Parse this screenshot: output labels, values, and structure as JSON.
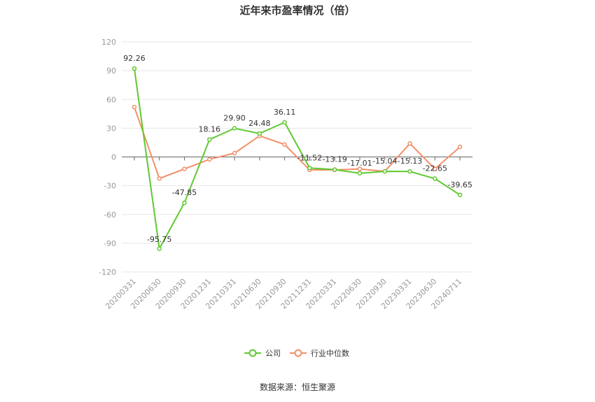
{
  "chart_data": {
    "type": "line",
    "title": "近年来市盈率情况（倍）",
    "categories": [
      "20200331",
      "20200630",
      "20200930",
      "20201231",
      "20210331",
      "20210630",
      "20210930",
      "20211231",
      "20220331",
      "20220630",
      "20220930",
      "20230331",
      "20230630",
      "20240711"
    ],
    "ylim": [
      -120,
      120
    ],
    "yticks": [
      120,
      90,
      60,
      30,
      0,
      -30,
      -60,
      -90,
      -120
    ],
    "grid": true,
    "legend_position": "bottom",
    "series": [
      {
        "name": "公司",
        "color": "#5fc931",
        "values": [
          92.26,
          -95.75,
          -47.85,
          18.16,
          29.9,
          24.48,
          36.11,
          -11.52,
          -13.19,
          -17.01,
          -15.04,
          -15.13,
          -22.65,
          -39.65
        ],
        "labels": [
          "92.26",
          "-95.75",
          "-47.85",
          "18.16",
          "29.90",
          "24.48",
          "36.11",
          "-11.52",
          "-13.19",
          "-17.01",
          "-15.04",
          "-15.13",
          "-22.65",
          "-39.65"
        ]
      },
      {
        "name": "行业中位数",
        "color": "#f2906a",
        "values": [
          52,
          -22.5,
          -12.5,
          -2.5,
          4,
          22,
          13,
          -13.5,
          -13.5,
          -12.5,
          -15,
          14,
          -12.5,
          10.5
        ]
      }
    ],
    "source": "数据来源：恒生聚源"
  }
}
